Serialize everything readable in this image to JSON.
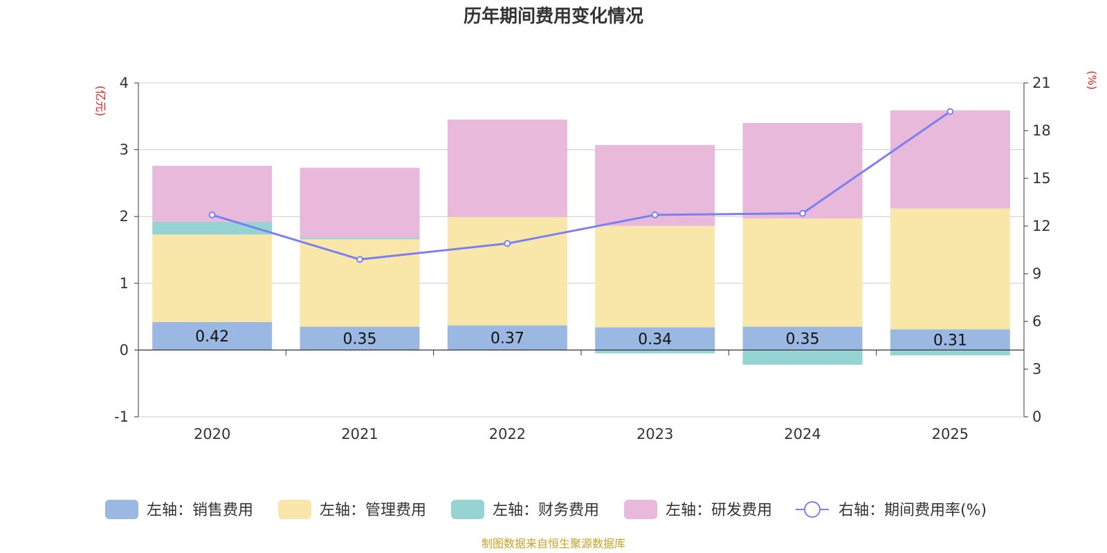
{
  "chart_data": {
    "type": "bar",
    "title": "历年期间费用变化情况",
    "categories": [
      "2020",
      "2021",
      "2022",
      "2023",
      "2024",
      "2025"
    ],
    "left_axis": {
      "unit": "(亿元)",
      "ylim": [
        -1,
        4
      ],
      "ticks": [
        4,
        3,
        2,
        1,
        0,
        -1
      ]
    },
    "right_axis": {
      "unit": "(%)",
      "ylim": [
        0,
        21
      ],
      "ticks": [
        21,
        18,
        15,
        12,
        9,
        6,
        3,
        0
      ]
    },
    "series": [
      {
        "name": "左轴：销售费用",
        "color": "#9bb8e2",
        "values": [
          0.42,
          0.35,
          0.37,
          0.34,
          0.35,
          0.31
        ],
        "labels": [
          "0.42",
          "0.35",
          "0.37",
          "0.34",
          "0.35",
          "0.31"
        ]
      },
      {
        "name": "左轴：管理费用",
        "color": "#f8e7a8",
        "values": [
          1.31,
          1.31,
          1.62,
          1.52,
          1.62,
          1.81
        ]
      },
      {
        "name": "左轴：财务费用",
        "color": "#96d4d4",
        "values": [
          0.19,
          0.02,
          0.0,
          -0.05,
          -0.22,
          -0.08
        ]
      },
      {
        "name": "左轴：研发费用",
        "color": "#e8b9da",
        "values": [
          0.84,
          1.05,
          1.46,
          1.21,
          1.43,
          1.47
        ]
      }
    ],
    "line": {
      "name": "右轴：期间费用率(%)",
      "color": "#7b7ff0",
      "values": [
        12.7,
        9.9,
        10.9,
        12.7,
        12.8,
        19.2
      ]
    },
    "grid": true,
    "legend_position": "bottom"
  },
  "source_text": "制图数据来自恒生聚源数据库"
}
